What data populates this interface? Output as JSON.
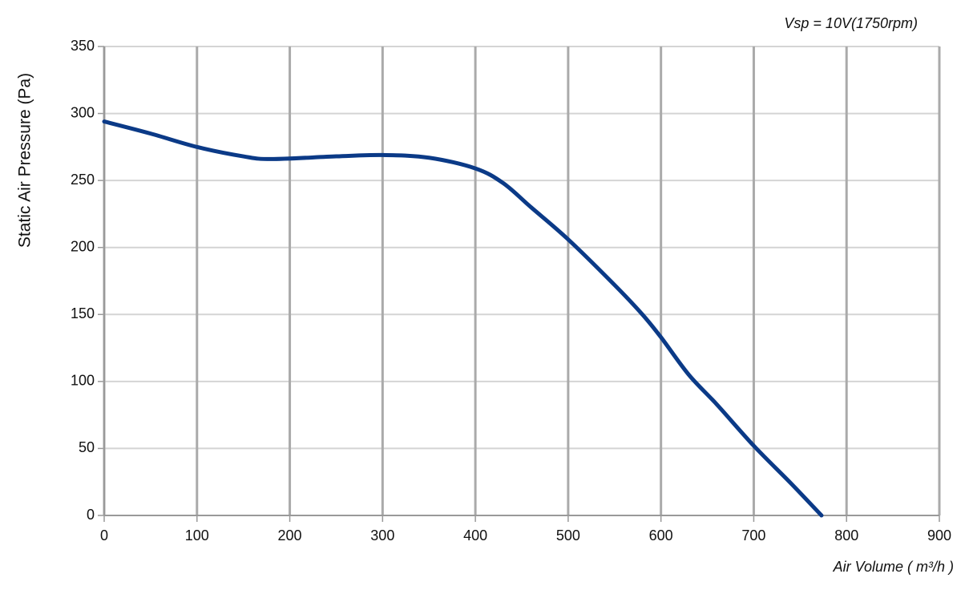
{
  "chart_data": {
    "type": "line",
    "annotation": "Vsp = 10V(1750rpm)",
    "x_label": "Air Volume ( m³/h )",
    "y_label": "Static Air Pressure  (Pa)",
    "x": [
      0,
      50,
      100,
      150,
      180,
      250,
      300,
      350,
      400,
      430,
      460,
      500,
      550,
      580,
      600,
      630,
      660,
      700,
      740,
      773
    ],
    "series": [
      {
        "color": "#0b3a87",
        "values": [
          294,
          285,
          275,
          268,
          266,
          268,
          269,
          267,
          259,
          248,
          230,
          206,
          172,
          150,
          133,
          105,
          83,
          52,
          24,
          0
        ]
      }
    ],
    "xlim": [
      0,
      900
    ],
    "xticks": [
      0,
      100,
      200,
      300,
      400,
      500,
      600,
      700,
      800,
      900
    ],
    "ylim": [
      0,
      350
    ],
    "yticks": [
      0,
      50,
      100,
      150,
      200,
      250,
      300,
      350
    ],
    "grid": true
  }
}
